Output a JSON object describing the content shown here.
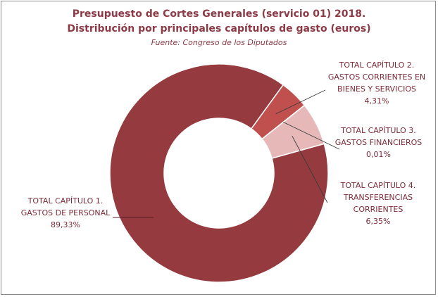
{
  "chart_data": {
    "type": "pie",
    "title": "Presupuesto de Cortes Generales (servicio 01) 2018.",
    "subtitle": "Distribución por principales capítulos de gasto (euros)",
    "source": "Fuente:  Congreso de los Diputados",
    "categories": [
      "TOTAL CAPÍTULO 1. GASTOS DE PERSONAL",
      "TOTAL CAPÍTULO 2. GASTOS CORRIENTES EN BIENES Y SERVICIOS",
      "TOTAL CAPÍTULO 3. GASTOS FINANCIEROS",
      "TOTAL CAPÍTULO 4. TRANSFERENCIAS CORRIENTES"
    ],
    "values": [
      89.33,
      4.31,
      0.01,
      6.35
    ],
    "value_labels": [
      "89,33%",
      "4,31%",
      "0,01%",
      "6,35%"
    ],
    "colors": [
      "#953a3e",
      "#c0504d",
      "#e6b9b8",
      "#e6b9b8"
    ],
    "donut": true
  }
}
